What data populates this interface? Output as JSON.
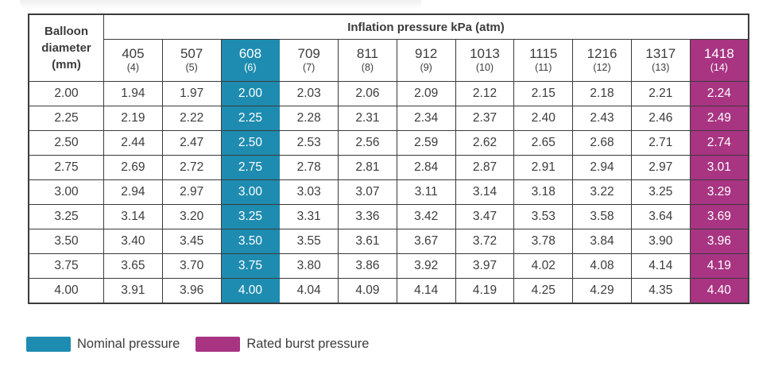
{
  "ui": {
    "corner_header": "Balloon\ndiameter\n(mm)",
    "group_header": "Inflation pressure kPa (atm)",
    "legend": [
      {
        "label": "Nominal pressure",
        "color_key": "nominal"
      },
      {
        "label": "Rated burst pressure",
        "color_key": "burst"
      }
    ]
  },
  "colors": {
    "nominal": "#1E8CB0",
    "burst": "#A83482",
    "border": "#3B3A3C",
    "text": "#3C3C3C"
  },
  "chart_data": {
    "type": "table",
    "title": "Inflation pressure kPa (atm)",
    "row_label": "Balloon diameter (mm)",
    "columns_kpa": [
      405,
      507,
      608,
      709,
      811,
      912,
      1013,
      1115,
      1216,
      1317,
      1418
    ],
    "columns_atm": [
      4,
      5,
      6,
      7,
      8,
      9,
      10,
      11,
      12,
      13,
      14
    ],
    "nominal_pressure_column_kpa": 608,
    "rated_burst_pressure_column_kpa": 1418,
    "rows": [
      {
        "diameter_mm": 2.0,
        "values": [
          1.94,
          1.97,
          2.0,
          2.03,
          2.06,
          2.09,
          2.12,
          2.15,
          2.18,
          2.21,
          2.24
        ]
      },
      {
        "diameter_mm": 2.25,
        "values": [
          2.19,
          2.22,
          2.25,
          2.28,
          2.31,
          2.34,
          2.37,
          2.4,
          2.43,
          2.46,
          2.49
        ]
      },
      {
        "diameter_mm": 2.5,
        "values": [
          2.44,
          2.47,
          2.5,
          2.53,
          2.56,
          2.59,
          2.62,
          2.65,
          2.68,
          2.71,
          2.74
        ]
      },
      {
        "diameter_mm": 2.75,
        "values": [
          2.69,
          2.72,
          2.75,
          2.78,
          2.81,
          2.84,
          2.87,
          2.91,
          2.94,
          2.97,
          3.01
        ]
      },
      {
        "diameter_mm": 3.0,
        "values": [
          2.94,
          2.97,
          3.0,
          3.03,
          3.07,
          3.11,
          3.14,
          3.18,
          3.22,
          3.25,
          3.29
        ]
      },
      {
        "diameter_mm": 3.25,
        "values": [
          3.14,
          3.2,
          3.25,
          3.31,
          3.36,
          3.42,
          3.47,
          3.53,
          3.58,
          3.64,
          3.69
        ]
      },
      {
        "diameter_mm": 3.5,
        "values": [
          3.4,
          3.45,
          3.5,
          3.55,
          3.61,
          3.67,
          3.72,
          3.78,
          3.84,
          3.9,
          3.96
        ]
      },
      {
        "diameter_mm": 3.75,
        "values": [
          3.65,
          3.7,
          3.75,
          3.8,
          3.86,
          3.92,
          3.97,
          4.02,
          4.08,
          4.14,
          4.19
        ]
      },
      {
        "diameter_mm": 4.0,
        "values": [
          3.91,
          3.96,
          4.0,
          4.04,
          4.09,
          4.14,
          4.19,
          4.25,
          4.29,
          4.35,
          4.4
        ]
      }
    ],
    "legend": [
      "Nominal pressure",
      "Rated burst pressure"
    ]
  }
}
